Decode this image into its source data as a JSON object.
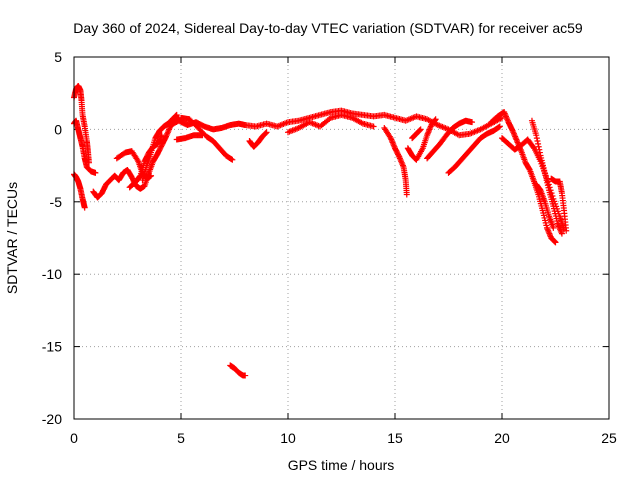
{
  "chart_data": {
    "type": "scatter",
    "title": "Day 360 of 2024, Sidereal Day-to-day VTEC variation (SDTVAR) for receiver ac59",
    "xlabel": "GPS time / hours",
    "ylabel": "SDTVAR / TECUs",
    "xlim": [
      0,
      25
    ],
    "ylim": [
      -20,
      5
    ],
    "xticks": [
      0,
      5,
      10,
      15,
      20,
      25
    ],
    "yticks": [
      -20,
      -15,
      -10,
      -5,
      0,
      5
    ],
    "grid": true,
    "marker": "+",
    "color": "#ff0000",
    "series": [
      {
        "name": "SDTVAR",
        "trace_segments": [
          [
            [
              0.0,
              2.2
            ],
            [
              0.1,
              2.8
            ],
            [
              0.2,
              3.0
            ],
            [
              0.3,
              2.7
            ],
            [
              0.35,
              2.0
            ],
            [
              0.4,
              1.0
            ],
            [
              0.5,
              0.2
            ],
            [
              0.6,
              -0.8
            ],
            [
              0.65,
              -1.5
            ],
            [
              0.7,
              -2.3
            ]
          ],
          [
            [
              0.0,
              0.4
            ],
            [
              0.1,
              0.6
            ],
            [
              0.2,
              0.0
            ],
            [
              0.3,
              -0.6
            ],
            [
              0.4,
              -1.2
            ],
            [
              0.5,
              -2.0
            ],
            [
              0.6,
              -2.6
            ],
            [
              0.8,
              -2.9
            ],
            [
              1.0,
              -3.0
            ]
          ],
          [
            [
              0.0,
              -3.1
            ],
            [
              0.1,
              -3.3
            ],
            [
              0.2,
              -3.6
            ],
            [
              0.3,
              -4.1
            ],
            [
              0.4,
              -4.8
            ],
            [
              0.5,
              -5.4
            ]
          ],
          [
            [
              0.9,
              -4.3
            ],
            [
              1.1,
              -4.7
            ],
            [
              1.3,
              -4.4
            ],
            [
              1.5,
              -3.8
            ],
            [
              1.7,
              -3.5
            ],
            [
              1.9,
              -3.2
            ],
            [
              2.1,
              -3.5
            ],
            [
              2.3,
              -3.0
            ],
            [
              2.5,
              -2.8
            ],
            [
              2.7,
              -3.3
            ],
            [
              2.9,
              -3.9
            ],
            [
              3.1,
              -4.1
            ],
            [
              3.3,
              -3.9
            ],
            [
              3.5,
              -3.0
            ],
            [
              3.7,
              -2.2
            ],
            [
              3.9,
              -1.7
            ],
            [
              4.1,
              -1.1
            ],
            [
              4.3,
              -0.5
            ],
            [
              4.5,
              0.2
            ],
            [
              4.7,
              0.5
            ],
            [
              4.9,
              0.8
            ]
          ],
          [
            [
              2.0,
              -2.0
            ],
            [
              2.4,
              -1.6
            ],
            [
              2.7,
              -1.5
            ],
            [
              3.0,
              -2.2
            ],
            [
              3.2,
              -3.0
            ],
            [
              3.4,
              -3.4
            ],
            [
              3.6,
              -3.2
            ]
          ],
          [
            [
              3.2,
              -3.5
            ],
            [
              3.4,
              -2.5
            ],
            [
              3.6,
              -1.6
            ],
            [
              3.8,
              -0.6
            ],
            [
              4.0,
              -0.1
            ],
            [
              4.2,
              0.2
            ],
            [
              4.4,
              0.4
            ],
            [
              4.6,
              0.7
            ],
            [
              4.8,
              1.0
            ]
          ],
          [
            [
              2.6,
              -4.0
            ],
            [
              2.9,
              -3.6
            ],
            [
              3.1,
              -3.2
            ],
            [
              3.3,
              -2.2
            ],
            [
              3.5,
              -1.6
            ],
            [
              3.7,
              -1.2
            ],
            [
              3.9,
              -1.0
            ],
            [
              4.1,
              -0.4
            ]
          ],
          [
            [
              4.5,
              0.3
            ],
            [
              4.9,
              0.6
            ],
            [
              5.3,
              0.3
            ],
            [
              5.7,
              0.5
            ],
            [
              6.1,
              0.2
            ],
            [
              6.5,
              0.0
            ],
            [
              6.9,
              0.1
            ],
            [
              7.3,
              0.3
            ],
            [
              7.7,
              0.4
            ],
            [
              8.0,
              0.3
            ]
          ],
          [
            [
              5.0,
              0.8
            ],
            [
              5.4,
              0.7
            ],
            [
              5.8,
              0.1
            ],
            [
              6.2,
              -0.5
            ],
            [
              6.5,
              -0.8
            ],
            [
              6.8,
              -1.3
            ],
            [
              7.1,
              -1.8
            ],
            [
              7.4,
              -2.1
            ]
          ],
          [
            [
              4.8,
              -0.7
            ],
            [
              5.2,
              -0.6
            ],
            [
              5.6,
              -0.4
            ],
            [
              6.0,
              -0.4
            ]
          ],
          [
            [
              7.3,
              -16.3
            ],
            [
              7.5,
              -16.5
            ],
            [
              7.7,
              -16.8
            ],
            [
              7.9,
              -17.0
            ],
            [
              8.0,
              -17.0
            ]
          ],
          [
            [
              8.0,
              0.3
            ],
            [
              8.5,
              0.2
            ],
            [
              9.0,
              0.4
            ],
            [
              9.5,
              0.2
            ],
            [
              10.0,
              0.5
            ],
            [
              10.5,
              0.6
            ],
            [
              11.0,
              0.8
            ],
            [
              11.5,
              1.0
            ],
            [
              12.0,
              1.2
            ],
            [
              12.5,
              1.3
            ],
            [
              13.0,
              1.1
            ],
            [
              13.5,
              1.0
            ],
            [
              14.0,
              0.9
            ],
            [
              14.5,
              1.0
            ],
            [
              15.0,
              0.8
            ],
            [
              15.5,
              0.6
            ],
            [
              16.0,
              0.9
            ],
            [
              16.5,
              0.7
            ],
            [
              17.0,
              0.3
            ],
            [
              17.5,
              0.0
            ],
            [
              18.0,
              -0.4
            ],
            [
              18.5,
              -0.3
            ],
            [
              19.0,
              0.0
            ],
            [
              19.5,
              0.4
            ],
            [
              20.0,
              0.8
            ]
          ],
          [
            [
              8.2,
              -0.8
            ],
            [
              8.4,
              -1.2
            ],
            [
              8.6,
              -0.9
            ],
            [
              8.8,
              -0.5
            ],
            [
              9.0,
              -0.2
            ]
          ],
          [
            [
              10.0,
              -0.2
            ],
            [
              10.5,
              0.1
            ],
            [
              11.0,
              0.5
            ],
            [
              11.5,
              0.2
            ],
            [
              12.0,
              0.8
            ],
            [
              12.5,
              1.0
            ],
            [
              13.0,
              0.8
            ],
            [
              13.5,
              0.4
            ],
            [
              14.0,
              0.2
            ]
          ],
          [
            [
              14.5,
              0.1
            ],
            [
              14.8,
              -0.6
            ],
            [
              15.0,
              -1.3
            ],
            [
              15.2,
              -1.9
            ],
            [
              15.4,
              -2.6
            ],
            [
              15.5,
              -3.5
            ],
            [
              15.55,
              -4.5
            ]
          ],
          [
            [
              15.6,
              -1.3
            ],
            [
              15.8,
              -1.8
            ],
            [
              16.0,
              -2.1
            ],
            [
              16.3,
              -1.3
            ],
            [
              16.5,
              -0.4
            ],
            [
              16.7,
              0.3
            ],
            [
              16.9,
              0.7
            ]
          ],
          [
            [
              16.2,
              0.0
            ],
            [
              16.0,
              -0.3
            ],
            [
              15.8,
              -0.6
            ]
          ],
          [
            [
              17.5,
              -3.0
            ],
            [
              17.8,
              -2.6
            ],
            [
              18.1,
              -2.1
            ],
            [
              18.4,
              -1.6
            ],
            [
              18.7,
              -1.1
            ],
            [
              19.0,
              -0.6
            ],
            [
              19.3,
              -0.3
            ],
            [
              19.6,
              -0.1
            ],
            [
              19.9,
              0.2
            ]
          ],
          [
            [
              16.5,
              -2.0
            ],
            [
              16.8,
              -1.5
            ],
            [
              17.1,
              -1.0
            ],
            [
              17.4,
              -0.4
            ],
            [
              17.7,
              0.1
            ],
            [
              18.0,
              0.4
            ],
            [
              18.3,
              0.6
            ],
            [
              18.6,
              0.5
            ]
          ],
          [
            [
              19.5,
              0.5
            ],
            [
              19.8,
              0.9
            ],
            [
              20.1,
              1.2
            ],
            [
              20.3,
              0.5
            ],
            [
              20.5,
              -0.1
            ],
            [
              20.7,
              -0.8
            ],
            [
              20.9,
              -1.5
            ],
            [
              21.1,
              -2.3
            ],
            [
              21.3,
              -2.8
            ],
            [
              21.5,
              -3.6
            ],
            [
              21.7,
              -4.5
            ],
            [
              21.9,
              -5.6
            ],
            [
              22.1,
              -6.8
            ],
            [
              22.3,
              -7.5
            ],
            [
              22.5,
              -7.8
            ]
          ],
          [
            [
              20.0,
              -0.6
            ],
            [
              20.3,
              -1.0
            ],
            [
              20.6,
              -1.4
            ],
            [
              20.9,
              -1.1
            ],
            [
              21.2,
              -0.7
            ],
            [
              21.5,
              -1.3
            ],
            [
              21.8,
              -2.2
            ],
            [
              22.1,
              -3.4
            ],
            [
              22.4,
              -4.8
            ],
            [
              22.7,
              -6.0
            ],
            [
              22.9,
              -6.9
            ]
          ],
          [
            [
              21.4,
              0.6
            ],
            [
              21.6,
              -0.4
            ],
            [
              21.8,
              -1.8
            ],
            [
              22.0,
              -3.0
            ],
            [
              22.2,
              -4.2
            ],
            [
              22.4,
              -5.3
            ],
            [
              22.6,
              -6.5
            ],
            [
              22.8,
              -7.2
            ]
          ],
          [
            [
              22.3,
              -3.4
            ],
            [
              22.5,
              -3.6
            ],
            [
              22.7,
              -3.6
            ],
            [
              22.8,
              -4.4
            ],
            [
              22.9,
              -5.6
            ],
            [
              23.0,
              -7.0
            ]
          ],
          [
            [
              21.6,
              -3.8
            ],
            [
              21.8,
              -4.2
            ],
            [
              22.0,
              -5.0
            ],
            [
              22.2,
              -6.0
            ],
            [
              22.4,
              -6.8
            ]
          ]
        ]
      }
    ]
  }
}
